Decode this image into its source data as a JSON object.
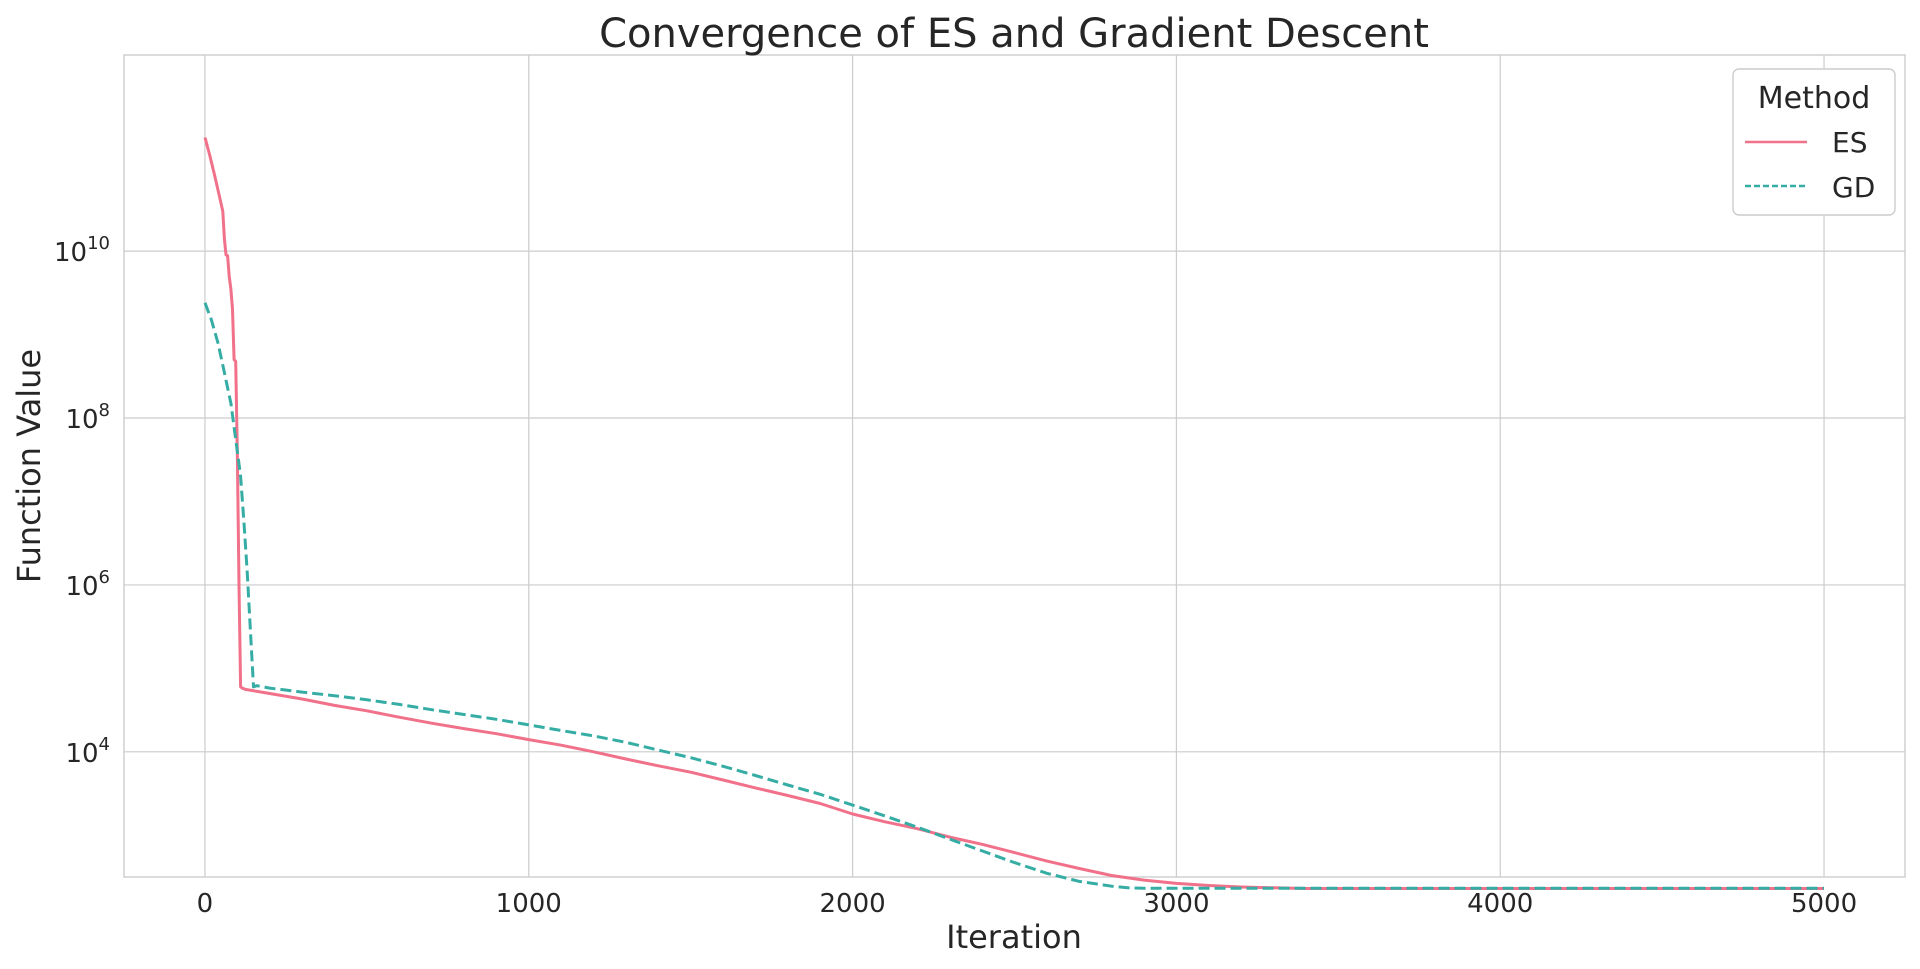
{
  "chart_data": {
    "type": "line",
    "title": "Convergence of ES and Gradient Descent",
    "xlabel": "Iteration",
    "ylabel": "Function Value",
    "xlim": [
      -250,
      5250
    ],
    "ylim_log10": [
      2.5,
      12.35
    ],
    "yscale": "log",
    "grid": true,
    "legend": {
      "title": "Method",
      "placement": "top-right"
    },
    "x_ticks": [
      {
        "value": 0,
        "label": "0"
      },
      {
        "value": 1000,
        "label": "1000"
      },
      {
        "value": 2000,
        "label": "2000"
      },
      {
        "value": 3000,
        "label": "3000"
      },
      {
        "value": 4000,
        "label": "4000"
      },
      {
        "value": 5000,
        "label": "5000"
      }
    ],
    "y_ticks": [
      {
        "value": 10000,
        "base": "10",
        "exp": "4"
      },
      {
        "value": 1000000,
        "base": "10",
        "exp": "6"
      },
      {
        "value": 100000000,
        "base": "10",
        "exp": "8"
      },
      {
        "value": 10000000000,
        "base": "10",
        "exp": "10"
      }
    ],
    "series": [
      {
        "name": "ES",
        "color": "#f07189",
        "dash": "solid",
        "x": [
          0,
          15,
          30,
          45,
          55,
          60,
          65,
          70,
          75,
          80,
          85,
          90,
          95,
          100,
          105,
          110,
          115,
          120,
          125,
          200,
          300,
          400,
          500,
          600,
          700,
          800,
          900,
          1000,
          1100,
          1200,
          1300,
          1400,
          1500,
          1600,
          1700,
          1800,
          1900,
          2000,
          2100,
          2200,
          2300,
          2400,
          2500,
          2600,
          2700,
          2800,
          2900,
          3000,
          3100,
          3200,
          3300,
          3400,
          3600,
          4000,
          4500,
          5000
        ],
        "y": [
          230000000000,
          140000000000,
          80000000000,
          45000000000,
          30000000000,
          14000000000,
          9000000000,
          8800000000,
          5000000000,
          3500000000,
          2000000000,
          500000000,
          480000000,
          40000000,
          1000000,
          60000,
          58000,
          57000,
          56000,
          50000,
          43000,
          36000,
          31000,
          26000,
          22000,
          19000,
          16500,
          14000,
          12000,
          10000,
          8200,
          6800,
          5700,
          4600,
          3700,
          3000,
          2400,
          1800,
          1450,
          1200,
          950,
          780,
          620,
          490,
          400,
          330,
          290,
          265,
          250,
          240,
          235,
          230,
          230,
          230,
          230,
          230
        ]
      },
      {
        "name": "GD",
        "color": "#36ada4",
        "dash": "dashed",
        "x": [
          0,
          20,
          40,
          60,
          80,
          100,
          110,
          120,
          130,
          140,
          150,
          160,
          200,
          300,
          400,
          500,
          600,
          700,
          800,
          900,
          1000,
          1100,
          1200,
          1300,
          1400,
          1500,
          1600,
          1700,
          1800,
          1900,
          2000,
          2100,
          2200,
          2300,
          2400,
          2500,
          2600,
          2700,
          2800,
          2850,
          2900,
          3000,
          3200,
          3500,
          4000,
          4500,
          5000
        ],
        "y": [
          2400000000,
          1500000000,
          800000000,
          350000000,
          150000000,
          40000000,
          20000000,
          6000000,
          1500000,
          300000,
          60000,
          62000,
          58000,
          52000,
          47000,
          42000,
          37000,
          32000,
          28000,
          24500,
          21000,
          18000,
          15500,
          13000,
          10500,
          8500,
          6700,
          5200,
          4000,
          3100,
          2300,
          1700,
          1250,
          900,
          650,
          470,
          350,
          280,
          245,
          235,
          232,
          232,
          232,
          232,
          232,
          232,
          232
        ]
      }
    ]
  }
}
